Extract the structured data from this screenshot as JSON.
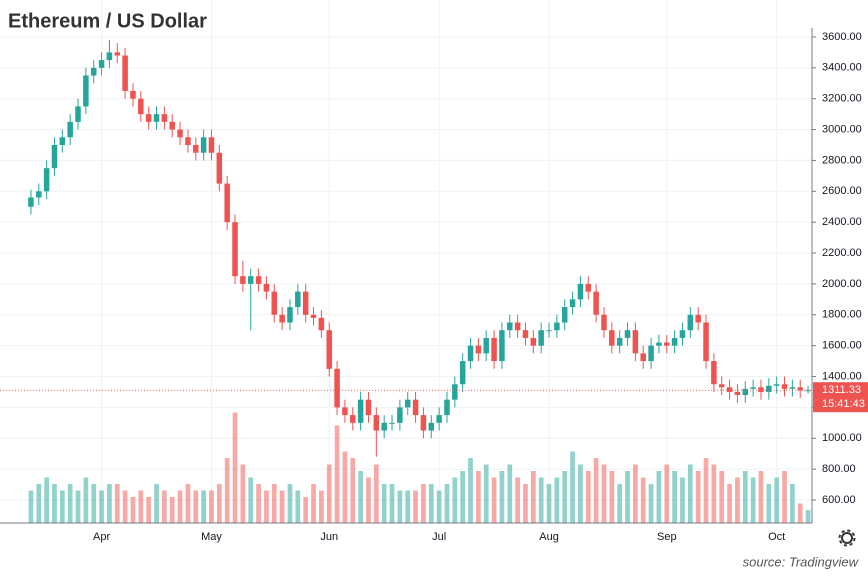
{
  "chart_data": {
    "type": "candlestick",
    "title": "Ethereum / US Dollar",
    "source": "source: Tradingview",
    "categories": [
      null,
      null,
      null,
      null,
      null,
      null,
      null,
      null,
      null,
      "Apr",
      null,
      null,
      null,
      null,
      null,
      null,
      null,
      null,
      null,
      null,
      null,
      null,
      null,
      "May",
      null,
      null,
      null,
      null,
      null,
      null,
      null,
      null,
      null,
      null,
      null,
      null,
      null,
      null,
      "Jun",
      null,
      null,
      null,
      null,
      null,
      null,
      null,
      null,
      null,
      null,
      null,
      null,
      null,
      "Jul",
      null,
      null,
      null,
      null,
      null,
      null,
      null,
      null,
      null,
      null,
      null,
      null,
      null,
      "Aug",
      null,
      null,
      null,
      null,
      null,
      null,
      null,
      null,
      null,
      null,
      null,
      null,
      null,
      null,
      "Sep",
      null,
      null,
      null,
      null,
      null,
      null,
      null,
      null,
      null,
      null,
      null,
      null,
      null,
      "Oct",
      null,
      null,
      null,
      null
    ],
    "open": [
      2500,
      2560,
      2600,
      2750,
      2900,
      2950,
      3050,
      3150,
      3350,
      3400,
      3450,
      3500,
      3480,
      3250,
      3200,
      3100,
      3050,
      3100,
      3050,
      3000,
      2950,
      2900,
      2850,
      2950,
      2850,
      2650,
      2400,
      2050,
      2000,
      2050,
      2000,
      1950,
      1800,
      1750,
      1850,
      1950,
      1800,
      1780,
      1700,
      1450,
      1200,
      1150,
      1100,
      1250,
      1150,
      1050,
      1100,
      1100,
      1200,
      1250,
      1150,
      1050,
      1100,
      1150,
      1250,
      1350,
      1500,
      1600,
      1550,
      1650,
      1500,
      1700,
      1750,
      1700,
      1650,
      1600,
      1700,
      1700,
      1750,
      1850,
      1900,
      2000,
      1950,
      1800,
      1700,
      1600,
      1650,
      1700,
      1550,
      1500,
      1600,
      1620,
      1600,
      1650,
      1700,
      1800,
      1750,
      1500,
      1350,
      1330,
      1300,
      1280,
      1320,
      1330,
      1300,
      1340,
      1350,
      1320,
      1330,
      1310
    ],
    "high": [
      2610,
      2650,
      2800,
      2950,
      3000,
      3100,
      3200,
      3400,
      3450,
      3500,
      3580,
      3560,
      3530,
      3300,
      3250,
      3150,
      3150,
      3150,
      3100,
      3050,
      3000,
      2950,
      3000,
      3000,
      2900,
      2700,
      2450,
      2150,
      2100,
      2100,
      2050,
      2000,
      1850,
      1900,
      2000,
      2000,
      1850,
      1830,
      1750,
      1500,
      1250,
      1200,
      1300,
      1300,
      1200,
      1150,
      1150,
      1250,
      1300,
      1300,
      1200,
      1150,
      1200,
      1300,
      1400,
      1550,
      1650,
      1650,
      1700,
      1700,
      1750,
      1800,
      1800,
      1750,
      1700,
      1750,
      1750,
      1800,
      1900,
      1950,
      2050,
      2050,
      2000,
      1850,
      1750,
      1700,
      1750,
      1750,
      1600,
      1650,
      1670,
      1670,
      1700,
      1750,
      1850,
      1850,
      1800,
      1550,
      1400,
      1380,
      1350,
      1370,
      1380,
      1380,
      1390,
      1400,
      1400,
      1380,
      1380,
      1340
    ],
    "low": [
      2450,
      2510,
      2550,
      2700,
      2850,
      2900,
      3000,
      3100,
      3300,
      3350,
      3400,
      3430,
      3200,
      3150,
      3050,
      3000,
      3000,
      3000,
      2950,
      2900,
      2850,
      2800,
      2800,
      2800,
      2600,
      2350,
      2000,
      1950,
      1700,
      1950,
      1900,
      1750,
      1700,
      1700,
      1800,
      1750,
      1730,
      1650,
      1400,
      1150,
      1100,
      1050,
      1050,
      1100,
      880,
      1000,
      1050,
      1050,
      1150,
      1100,
      1000,
      1000,
      1050,
      1100,
      1200,
      1300,
      1450,
      1500,
      1500,
      1450,
      1450,
      1650,
      1650,
      1600,
      1550,
      1550,
      1650,
      1650,
      1700,
      1800,
      1850,
      1900,
      1750,
      1650,
      1550,
      1550,
      1600,
      1500,
      1450,
      1450,
      1550,
      1550,
      1550,
      1600,
      1650,
      1700,
      1450,
      1300,
      1280,
      1250,
      1230,
      1230,
      1270,
      1250,
      1250,
      1290,
      1270,
      1270,
      1260,
      1290
    ],
    "close": [
      2560,
      2600,
      2750,
      2900,
      2950,
      3050,
      3150,
      3350,
      3400,
      3450,
      3500,
      3480,
      3250,
      3200,
      3100,
      3050,
      3100,
      3050,
      3000,
      2950,
      2900,
      2850,
      2950,
      2850,
      2650,
      2400,
      2050,
      2000,
      2050,
      2000,
      1950,
      1800,
      1750,
      1850,
      1950,
      1800,
      1780,
      1700,
      1450,
      1200,
      1150,
      1100,
      1250,
      1150,
      1050,
      1100,
      1100,
      1200,
      1250,
      1150,
      1050,
      1100,
      1150,
      1250,
      1350,
      1500,
      1600,
      1550,
      1650,
      1500,
      1700,
      1750,
      1700,
      1650,
      1600,
      1700,
      1700,
      1750,
      1850,
      1900,
      2000,
      1950,
      1800,
      1700,
      1600,
      1650,
      1700,
      1550,
      1500,
      1600,
      1620,
      1600,
      1650,
      1700,
      1800,
      1750,
      1500,
      1350,
      1330,
      1300,
      1280,
      1320,
      1330,
      1300,
      1340,
      1350,
      1320,
      1330,
      1310,
      1311.33
    ],
    "volume": [
      2.5,
      3,
      3.5,
      3,
      2.5,
      3,
      2.5,
      3.5,
      3,
      2.5,
      3,
      3,
      2.5,
      2,
      2.5,
      2,
      3,
      2.5,
      2,
      2.5,
      3,
      2.5,
      2.5,
      2.5,
      3,
      5,
      8.5,
      4.5,
      3.5,
      3,
      2.5,
      3,
      2.5,
      3,
      2.5,
      2,
      3,
      2.5,
      4.5,
      7.5,
      5.5,
      5,
      4,
      3.5,
      4.5,
      3,
      3,
      2.5,
      2.5,
      2.5,
      3,
      3,
      2.5,
      3,
      3.5,
      4,
      5,
      4,
      4.5,
      3.5,
      4,
      4.5,
      3.5,
      3,
      4,
      3.5,
      3,
      3.5,
      4,
      5.5,
      4.5,
      4,
      5,
      4.5,
      4,
      3,
      4,
      4.5,
      3.5,
      3,
      4,
      4.5,
      4,
      3.5,
      4.5,
      4,
      5,
      4.5,
      4,
      3,
      3.5,
      4,
      3.5,
      4,
      3,
      3.5,
      4,
      3,
      1.5,
      1
    ],
    "vlim": [
      0,
      10
    ],
    "ylim": [
      451,
      3658
    ],
    "yticks": [
      {
        "value": 600,
        "label": "600.00"
      },
      {
        "value": 800,
        "label": "800.00"
      },
      {
        "value": 1000,
        "label": "1000.00"
      },
      {
        "value": 1200,
        "label": "1200.00"
      },
      {
        "value": 1400,
        "label": "1400.00"
      },
      {
        "value": 1600,
        "label": "1600.00"
      },
      {
        "value": 1800,
        "label": "1800.00"
      },
      {
        "value": 2000,
        "label": "2000.00"
      },
      {
        "value": 2200,
        "label": "2200.00"
      },
      {
        "value": 2400,
        "label": "2400.00"
      },
      {
        "value": 2600,
        "label": "2600.00"
      },
      {
        "value": 2800,
        "label": "2800.00"
      },
      {
        "value": 3000,
        "label": "3000.00"
      },
      {
        "value": 3200,
        "label": "3200.00"
      },
      {
        "value": 3400,
        "label": "3400.00"
      },
      {
        "value": 3600,
        "label": "3600.00"
      }
    ],
    "last_price": 1311.33,
    "countdown": "15:41:43",
    "up_color": "#26a69a",
    "down_color": "#ef5350",
    "grid": true
  }
}
